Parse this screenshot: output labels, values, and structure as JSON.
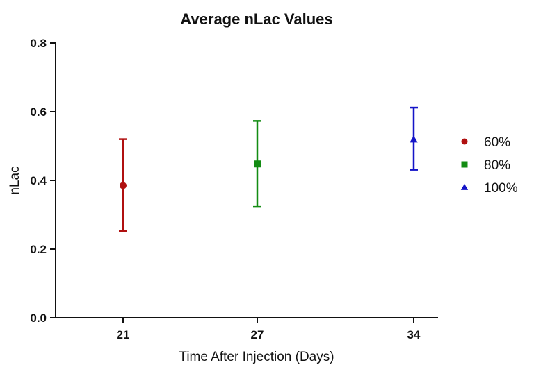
{
  "chart_data": {
    "type": "scatter",
    "title": "Average nLac Values",
    "xlabel": "Time After Injection (Days)",
    "ylabel": "nLac",
    "ylim": [
      0.0,
      0.8
    ],
    "yticks": [
      "0.0",
      "0.2",
      "0.4",
      "0.6",
      "0.8"
    ],
    "categories": [
      "21",
      "27",
      "34"
    ],
    "grid": false,
    "legend_position": "right",
    "series": [
      {
        "name": "60%",
        "category": "21",
        "value": 0.385,
        "err_low": 0.252,
        "err_high": 0.52,
        "marker": "circle",
        "color": "#b01010"
      },
      {
        "name": "80%",
        "category": "27",
        "value": 0.448,
        "err_low": 0.323,
        "err_high": 0.573,
        "marker": "square",
        "color": "#138c13"
      },
      {
        "name": "100%",
        "category": "34",
        "value": 0.519,
        "err_low": 0.431,
        "err_high": 0.612,
        "marker": "triangle",
        "color": "#1414c8"
      }
    ]
  }
}
